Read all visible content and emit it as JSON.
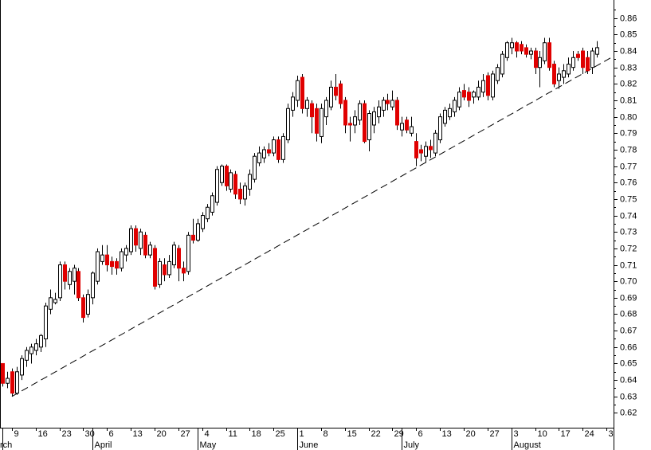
{
  "chart_data": {
    "type": "candlestick",
    "categories": [
      null,
      null,
      "9",
      null,
      null,
      null,
      null,
      "16",
      null,
      null,
      null,
      null,
      "23",
      null,
      null,
      null,
      null,
      "30",
      null,
      null,
      null,
      null,
      "6",
      null,
      null,
      null,
      null,
      "13",
      null,
      null,
      null,
      null,
      "20",
      null,
      null,
      null,
      null,
      "27",
      null,
      null,
      null,
      null,
      "4",
      null,
      null,
      null,
      null,
      "11",
      null,
      null,
      null,
      null,
      "18",
      null,
      null,
      null,
      null,
      "25",
      null,
      null,
      null,
      null,
      "1",
      null,
      null,
      null,
      null,
      "8",
      null,
      null,
      null,
      null,
      "15",
      null,
      null,
      null,
      null,
      "22",
      null,
      null,
      null,
      null,
      "29",
      null,
      null,
      null,
      null,
      "6",
      null,
      null,
      null,
      null,
      "13",
      null,
      null,
      null,
      null,
      "20",
      null,
      null,
      null,
      null,
      "27",
      null,
      null,
      null,
      null,
      "3",
      null,
      null,
      null,
      null,
      "10",
      null,
      null,
      null,
      null,
      "17",
      null,
      null,
      null,
      null,
      "24",
      null,
      null,
      null,
      null,
      "3",
      null
    ],
    "month_categories": [
      "rch",
      null,
      null,
      null,
      null,
      null,
      null,
      null,
      null,
      null,
      null,
      null,
      null,
      null,
      null,
      null,
      null,
      null,
      null,
      "April",
      null,
      null,
      null,
      null,
      null,
      null,
      null,
      null,
      null,
      null,
      null,
      null,
      null,
      null,
      null,
      null,
      null,
      null,
      null,
      null,
      null,
      "May",
      null,
      null,
      null,
      null,
      null,
      null,
      null,
      null,
      null,
      null,
      null,
      null,
      null,
      null,
      null,
      null,
      null,
      null,
      null,
      null,
      "June",
      null,
      null,
      null,
      null,
      null,
      null,
      null,
      null,
      null,
      null,
      null,
      null,
      null,
      null,
      null,
      null,
      null,
      null,
      null,
      null,
      null,
      "July",
      null,
      null,
      null,
      null,
      null,
      null,
      null,
      null,
      null,
      null,
      null,
      null,
      null,
      null,
      null,
      null,
      null,
      null,
      null,
      null,
      null,
      null,
      "August",
      null,
      null,
      null,
      null,
      null,
      null,
      null,
      null,
      null,
      null,
      null,
      null,
      null,
      null,
      null,
      null,
      null,
      null,
      null,
      null,
      null
    ],
    "open": [
      0.65,
      0.638,
      0.645,
      0.632,
      0.643,
      0.652,
      0.656,
      0.658,
      0.66,
      0.665,
      0.683,
      0.687,
      0.69,
      0.71,
      0.698,
      0.7,
      0.706,
      0.69,
      0.68,
      0.69,
      0.7,
      0.712,
      0.716,
      0.712,
      0.712,
      0.708,
      0.716,
      0.718,
      0.732,
      0.72,
      0.728,
      0.716,
      0.72,
      0.698,
      0.71,
      0.704,
      0.71,
      0.72,
      0.708,
      0.706,
      0.728,
      0.725,
      0.732,
      0.738,
      0.742,
      0.748,
      0.76,
      0.77,
      0.756,
      0.765,
      0.756,
      0.75,
      0.756,
      0.762,
      0.772,
      0.775,
      0.78,
      0.778,
      0.786,
      0.774,
      0.786,
      0.804,
      0.81,
      0.824,
      0.805,
      0.808,
      0.805,
      0.788,
      0.8,
      0.806,
      0.818,
      0.82,
      0.81,
      0.796,
      0.795,
      0.798,
      0.808,
      0.786,
      0.795,
      0.8,
      0.804,
      0.81,
      0.806,
      0.81,
      0.792,
      0.798,
      0.79,
      0.785,
      0.78,
      0.776,
      0.782,
      0.778,
      0.786,
      0.796,
      0.8,
      0.803,
      0.806,
      0.816,
      0.815,
      0.812,
      0.812,
      0.815,
      0.825,
      0.812,
      0.822,
      0.826,
      0.836,
      0.842,
      0.845,
      0.844,
      0.842,
      0.838,
      0.84,
      0.83,
      0.834,
      0.845,
      0.832,
      0.822,
      0.824,
      0.826,
      0.83,
      0.838,
      0.84,
      0.836,
      0.83,
      0.838,
      null,
      null,
      null
    ],
    "high": [
      0.65,
      0.645,
      0.647,
      0.648,
      0.655,
      0.66,
      0.662,
      0.665,
      0.668,
      0.687,
      0.695,
      0.693,
      0.712,
      0.712,
      0.708,
      0.71,
      0.708,
      0.692,
      0.695,
      0.706,
      0.72,
      0.722,
      0.722,
      0.715,
      0.714,
      0.72,
      0.722,
      0.734,
      0.734,
      0.732,
      0.73,
      0.724,
      0.722,
      0.714,
      0.714,
      0.716,
      0.724,
      0.722,
      0.712,
      0.73,
      0.738,
      0.738,
      0.742,
      0.747,
      0.754,
      0.77,
      0.771,
      0.771,
      0.768,
      0.767,
      0.76,
      0.76,
      0.768,
      0.778,
      0.782,
      0.782,
      0.784,
      0.788,
      0.788,
      0.79,
      0.808,
      0.815,
      0.825,
      0.826,
      0.812,
      0.81,
      0.808,
      0.808,
      0.812,
      0.822,
      0.826,
      0.822,
      0.812,
      0.8,
      0.804,
      0.81,
      0.81,
      0.804,
      0.806,
      0.81,
      0.812,
      0.814,
      0.816,
      0.812,
      0.8,
      0.8,
      0.8,
      0.79,
      0.783,
      0.785,
      0.786,
      0.792,
      0.802,
      0.806,
      0.808,
      0.812,
      0.818,
      0.82,
      0.818,
      0.816,
      0.822,
      0.826,
      0.827,
      0.828,
      0.832,
      0.84,
      0.846,
      0.848,
      0.846,
      0.846,
      0.844,
      0.842,
      0.842,
      0.84,
      0.848,
      0.848,
      0.834,
      0.83,
      0.832,
      0.836,
      0.84,
      0.84,
      0.842,
      0.84,
      0.842,
      0.846,
      null,
      null,
      null
    ],
    "low": [
      0.636,
      0.635,
      0.63,
      0.631,
      0.64,
      0.648,
      0.65,
      0.655,
      0.657,
      0.66,
      0.68,
      0.686,
      0.688,
      0.695,
      0.695,
      0.692,
      0.688,
      0.675,
      0.678,
      0.686,
      0.698,
      0.71,
      0.706,
      0.704,
      0.704,
      0.706,
      0.712,
      0.716,
      0.718,
      0.716,
      0.714,
      0.714,
      0.695,
      0.696,
      0.7,
      0.702,
      0.708,
      0.7,
      0.7,
      0.704,
      0.723,
      0.724,
      0.73,
      0.736,
      0.74,
      0.746,
      0.758,
      0.755,
      0.754,
      0.75,
      0.747,
      0.746,
      0.752,
      0.76,
      0.77,
      0.772,
      0.776,
      0.776,
      0.772,
      0.772,
      0.784,
      0.8,
      0.806,
      0.802,
      0.8,
      0.79,
      0.785,
      0.784,
      0.795,
      0.804,
      0.81,
      0.805,
      0.79,
      0.785,
      0.79,
      0.795,
      0.784,
      0.779,
      0.79,
      0.796,
      0.8,
      0.804,
      0.804,
      0.792,
      0.788,
      0.79,
      0.788,
      0.77,
      0.773,
      0.772,
      0.775,
      0.776,
      0.784,
      0.794,
      0.798,
      0.8,
      0.804,
      0.81,
      0.806,
      0.808,
      0.81,
      0.812,
      0.81,
      0.81,
      0.82,
      0.824,
      0.834,
      0.838,
      0.836,
      0.838,
      0.836,
      0.835,
      0.826,
      0.818,
      0.832,
      0.828,
      0.818,
      0.817,
      0.82,
      0.824,
      0.828,
      0.834,
      0.826,
      0.826,
      0.826,
      0.836,
      null,
      null,
      null
    ],
    "close": [
      0.638,
      0.641,
      0.632,
      0.645,
      0.653,
      0.658,
      0.66,
      0.662,
      0.667,
      0.685,
      0.69,
      0.689,
      0.71,
      0.7,
      0.706,
      0.708,
      0.69,
      0.678,
      0.692,
      0.705,
      0.718,
      0.716,
      0.71,
      0.709,
      0.708,
      0.718,
      0.72,
      0.732,
      0.722,
      0.73,
      0.716,
      0.722,
      0.697,
      0.712,
      0.704,
      0.712,
      0.722,
      0.708,
      0.705,
      0.728,
      0.725,
      0.735,
      0.74,
      0.745,
      0.752,
      0.768,
      0.77,
      0.758,
      0.766,
      0.753,
      0.75,
      0.758,
      0.765,
      0.776,
      0.778,
      0.78,
      0.778,
      0.786,
      0.774,
      0.788,
      0.805,
      0.812,
      0.822,
      0.805,
      0.81,
      0.8,
      0.79,
      0.805,
      0.81,
      0.818,
      0.813,
      0.808,
      0.795,
      0.795,
      0.8,
      0.808,
      0.785,
      0.802,
      0.803,
      0.806,
      0.81,
      0.808,
      0.81,
      0.795,
      0.796,
      0.792,
      0.794,
      0.775,
      0.778,
      0.782,
      0.78,
      0.79,
      0.8,
      0.804,
      0.805,
      0.81,
      0.815,
      0.812,
      0.81,
      0.815,
      0.818,
      0.822,
      0.813,
      0.826,
      0.83,
      0.838,
      0.845,
      0.845,
      0.84,
      0.84,
      0.838,
      0.84,
      0.83,
      0.836,
      0.845,
      0.83,
      0.82,
      0.826,
      0.828,
      0.832,
      0.836,
      0.836,
      0.83,
      0.828,
      0.84,
      0.842,
      null,
      null,
      null
    ],
    "up_color": "#ffffff",
    "down_color": "#e00000",
    "trendline": {
      "x": [
        2,
        128
      ],
      "values": [
        0.63,
        0.836
      ]
    },
    "ylim": [
      0.611,
      0.871
    ],
    "yticks": [
      0.62,
      0.63,
      0.64,
      0.65,
      0.66,
      0.67,
      0.68,
      0.69,
      {
        "value": 0.7,
        "label": "0.70"
      },
      0.71,
      0.72,
      0.73,
      0.74,
      0.75,
      0.76,
      0.77,
      0.78,
      0.79,
      {
        "value": 0.8,
        "label": "0.80"
      },
      0.81,
      0.82,
      0.83,
      0.84,
      0.85,
      0.86
    ]
  }
}
